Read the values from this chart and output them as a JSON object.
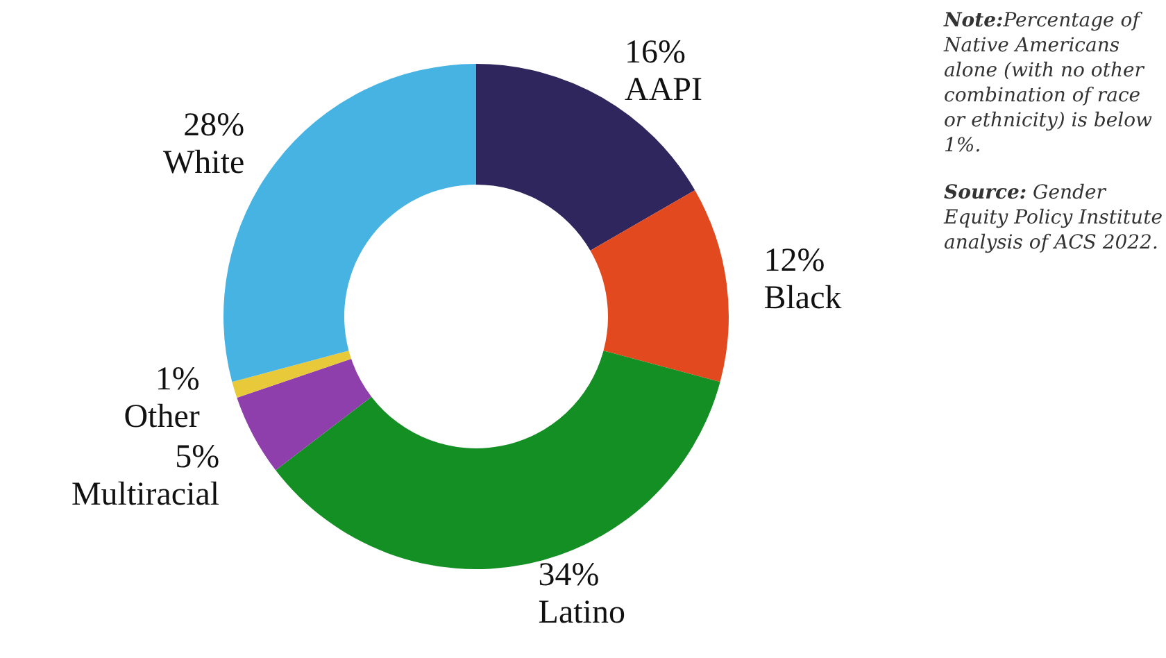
{
  "chart_data": {
    "type": "donut",
    "categories": [
      "AAPI",
      "Black",
      "Latino",
      "Multiracial",
      "Other",
      "White"
    ],
    "values": [
      16,
      12,
      34,
      5,
      1,
      28
    ],
    "value_labels": [
      "16%",
      "12%",
      "34%",
      "5%",
      "1%",
      "28%"
    ],
    "colors": [
      "#30265e",
      "#e2491e",
      "#138f24",
      "#8f3fab",
      "#e8c93a",
      "#47b3e2"
    ],
    "legend": false,
    "annotations": [
      "Note:Percentage of Native Americans alone (with no other combination of race or ethnicity) is below 1%.",
      "Source: Gender Equity Policy Institute analysis of ACS 2022."
    ]
  }
}
